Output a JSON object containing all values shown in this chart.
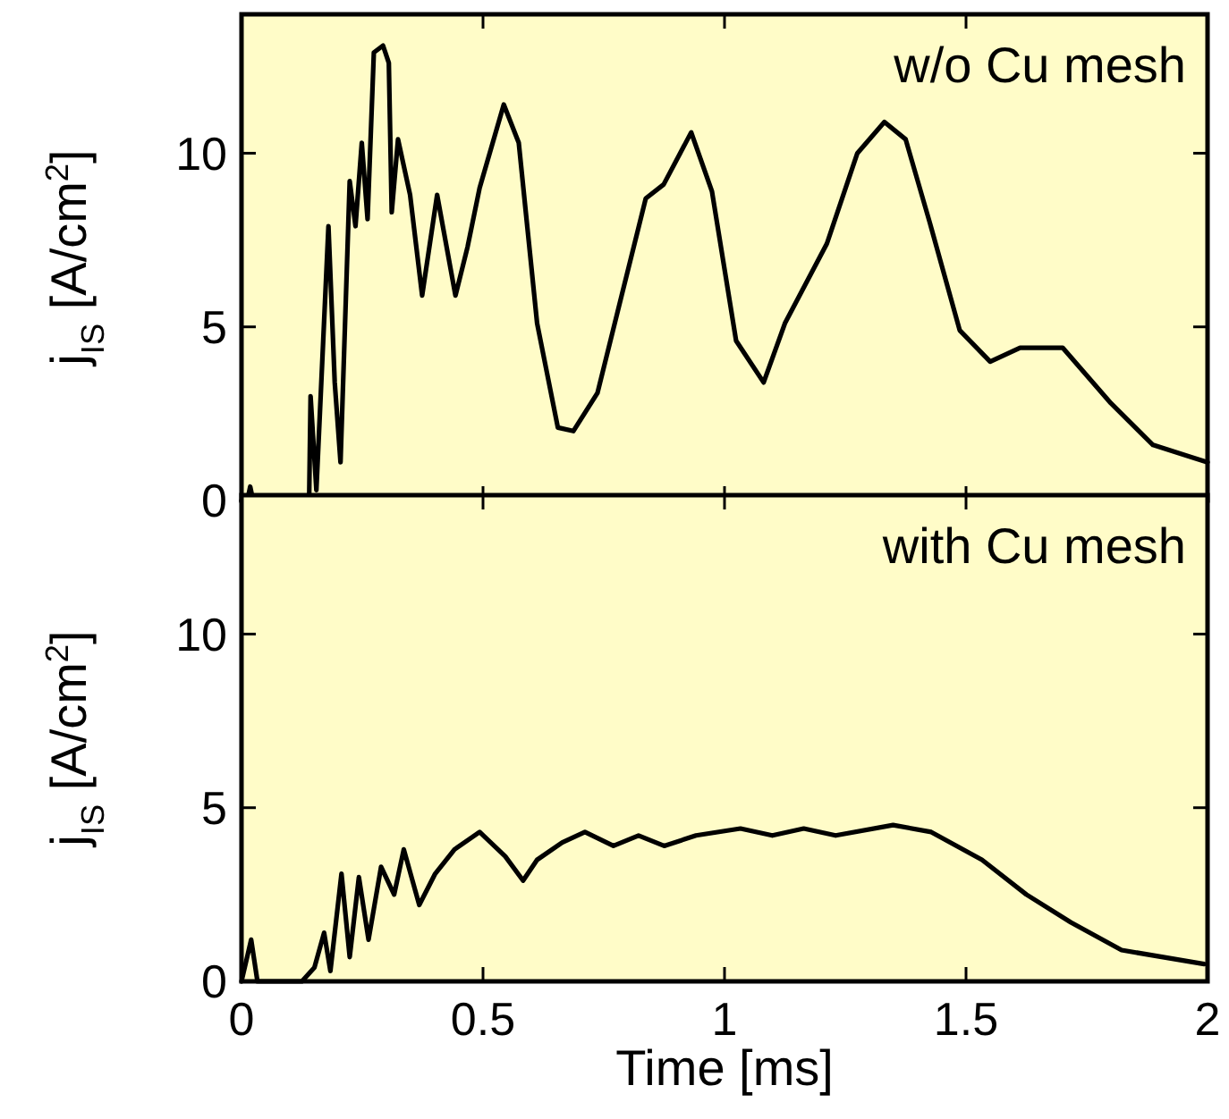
{
  "chart_data": [
    {
      "type": "line",
      "ylabel": "j$_{IS}$ [A/cm$^{2}$]",
      "annotations": [
        "w/o Cu mesh"
      ],
      "xlim": [
        0,
        2
      ],
      "xticks": [
        0,
        0.5,
        1,
        1.5,
        2
      ],
      "ylim": [
        0,
        14
      ],
      "yticks": [
        0,
        5,
        10
      ],
      "tick_labels": "y",
      "series": [
        {
          "color": "#000000",
          "x": [
            0,
            0.012,
            0.018,
            0.024,
            0.14,
            0.143,
            0.155,
            0.18,
            0.193,
            0.205,
            0.224,
            0.236,
            0.249,
            0.261,
            0.274,
            0.293,
            0.305,
            0.311,
            0.324,
            0.349,
            0.374,
            0.405,
            0.443,
            0.468,
            0.493,
            0.543,
            0.574,
            0.612,
            0.655,
            0.687,
            0.737,
            0.787,
            0.837,
            0.874,
            0.931,
            0.974,
            1.024,
            1.081,
            1.125,
            1.212,
            1.275,
            1.331,
            1.375,
            1.425,
            1.487,
            1.55,
            1.612,
            1.7,
            1.8,
            1.887,
            2
          ],
          "values": [
            0,
            0,
            0.4,
            0,
            0,
            3.0,
            0.3,
            7.9,
            3.4,
            1.1,
            9.2,
            7.9,
            10.3,
            8.1,
            12.9,
            13.1,
            12.6,
            8.3,
            10.4,
            8.8,
            5.9,
            8.8,
            5.9,
            7.3,
            9.0,
            11.4,
            10.3,
            5.1,
            2.1,
            2.0,
            3.1,
            5.9,
            8.7,
            9.1,
            10.6,
            8.9,
            4.6,
            3.4,
            5.1,
            7.4,
            10.0,
            10.9,
            10.4,
            8.0,
            4.9,
            4.0,
            4.4,
            4.4,
            2.8,
            1.6,
            1.1
          ]
        }
      ]
    },
    {
      "type": "line",
      "xlabel": "Time [ms]",
      "ylabel": "j$_{IS}$ [A/cm$^{2}$]",
      "annotations": [
        "with Cu mesh"
      ],
      "xlim": [
        0,
        2
      ],
      "xticks": [
        0,
        0.5,
        1,
        1.5,
        2
      ],
      "ylim": [
        0,
        14
      ],
      "yticks": [
        0,
        5,
        10
      ],
      "series": [
        {
          "color": "#000000",
          "x": [
            0,
            0.02,
            0.033,
            0.125,
            0.151,
            0.171,
            0.184,
            0.207,
            0.224,
            0.243,
            0.263,
            0.289,
            0.316,
            0.336,
            0.368,
            0.401,
            0.441,
            0.493,
            0.546,
            0.583,
            0.612,
            0.664,
            0.711,
            0.77,
            0.822,
            0.875,
            0.941,
            1.033,
            1.099,
            1.164,
            1.23,
            1.349,
            1.428,
            1.533,
            1.625,
            1.717,
            1.822,
            1.993
          ],
          "values": [
            0,
            1.2,
            0,
            0,
            0.4,
            1.4,
            0.3,
            3.1,
            0.7,
            3.0,
            1.2,
            3.3,
            2.5,
            3.8,
            2.2,
            3.1,
            3.8,
            4.3,
            3.6,
            2.9,
            3.5,
            4.0,
            4.3,
            3.9,
            4.2,
            3.9,
            4.2,
            4.4,
            4.2,
            4.4,
            4.2,
            4.5,
            4.3,
            3.5,
            2.5,
            1.7,
            0.9,
            0.5
          ]
        }
      ]
    }
  ]
}
